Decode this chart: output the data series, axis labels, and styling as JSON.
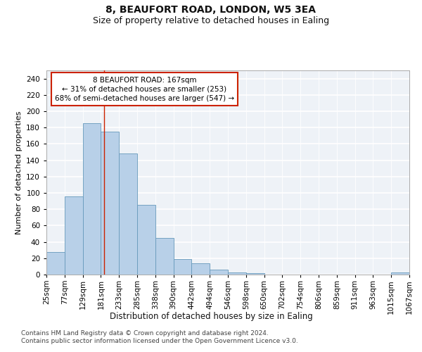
{
  "title1": "8, BEAUFORT ROAD, LONDON, W5 3EA",
  "title2": "Size of property relative to detached houses in Ealing",
  "xlabel": "Distribution of detached houses by size in Ealing",
  "ylabel": "Number of detached properties",
  "bin_edges": [
    "25sqm",
    "77sqm",
    "129sqm",
    "181sqm",
    "233sqm",
    "285sqm",
    "338sqm",
    "390sqm",
    "442sqm",
    "494sqm",
    "546sqm",
    "598sqm",
    "650sqm",
    "702sqm",
    "754sqm",
    "806sqm",
    "859sqm",
    "911sqm",
    "963sqm",
    "1015sqm",
    "1067sqm"
  ],
  "bar_values": [
    28,
    96,
    185,
    175,
    148,
    85,
    45,
    19,
    14,
    6,
    3,
    2,
    0,
    0,
    0,
    0,
    0,
    0,
    0,
    3
  ],
  "bar_color": "#b8d0e8",
  "bar_edge_color": "#6699bb",
  "vline_pos": 3.18,
  "vline_color": "#cc2200",
  "annotation_text": "8 BEAUFORT ROAD: 167sqm\n← 31% of detached houses are smaller (253)\n68% of semi-detached houses are larger (547) →",
  "annotation_box_color": "#ffffff",
  "annotation_box_edge": "#cc2200",
  "ylim": [
    0,
    250
  ],
  "yticks": [
    0,
    20,
    40,
    60,
    80,
    100,
    120,
    140,
    160,
    180,
    200,
    220,
    240
  ],
  "footnote1": "Contains HM Land Registry data © Crown copyright and database right 2024.",
  "footnote2": "Contains public sector information licensed under the Open Government Licence v3.0.",
  "bg_color": "#eef2f7",
  "grid_color": "#ffffff",
  "title1_fontsize": 10,
  "title2_fontsize": 9,
  "xlabel_fontsize": 8.5,
  "ylabel_fontsize": 8,
  "tick_fontsize": 7.5,
  "annot_fontsize": 7.5,
  "footnote_fontsize": 6.5
}
